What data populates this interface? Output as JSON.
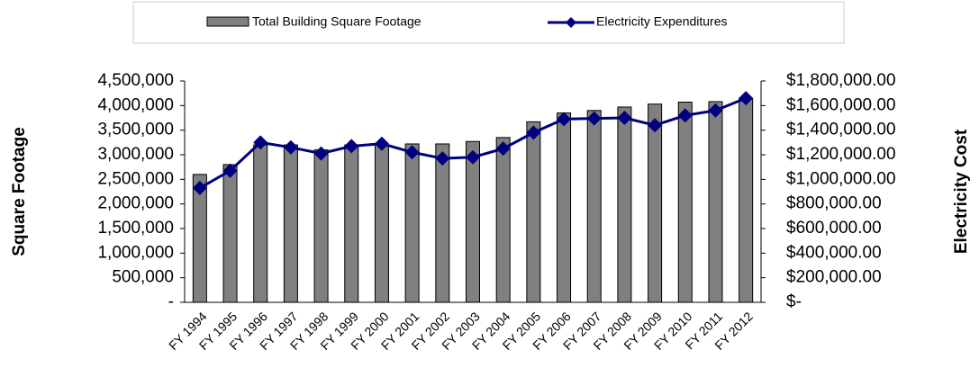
{
  "chart_data": {
    "type": "bar_line",
    "categories": [
      "FY 1994",
      "FY 1995",
      "FY 1996",
      "FY 1997",
      "FY 1998",
      "FY 1999",
      "FY 2000",
      "FY 2001",
      "FY 2002",
      "FY 2003",
      "FY 2004",
      "FY 2005",
      "FY 2006",
      "FY 2007",
      "FY 2008",
      "FY 2009",
      "FY 2010",
      "FY 2011",
      "FY 2012"
    ],
    "series": [
      {
        "name": "Total Building Square Footage",
        "color": "#808080",
        "values": [
          2600000,
          2800000,
          3200000,
          3200000,
          3100000,
          3200000,
          3200000,
          3220000,
          3220000,
          3270000,
          3350000,
          3670000,
          3850000,
          3900000,
          3970000,
          4030000,
          4070000,
          4080000,
          4150000
        ]
      },
      {
        "name": "Electricity Expenditures",
        "color": "#000080",
        "axis": "y2",
        "values": [
          930000,
          1070000,
          1300000,
          1260000,
          1210000,
          1270000,
          1290000,
          1220000,
          1170000,
          1180000,
          1250000,
          1380000,
          1490000,
          1495000,
          1500000,
          1440000,
          1520000,
          1560000,
          1660000
        ]
      }
    ],
    "ylabel": "Square Footage",
    "y2label": "Electricity Cost",
    "ylim": [
      0,
      4500000
    ],
    "yticks": [
      {
        "value": 0,
        "label": "-"
      },
      {
        "value": 500000,
        "label": "500,000"
      },
      {
        "value": 1000000,
        "label": "1,000,000"
      },
      {
        "value": 1500000,
        "label": "1,500,000"
      },
      {
        "value": 2000000,
        "label": "2,000,000"
      },
      {
        "value": 2500000,
        "label": "2,500,000"
      },
      {
        "value": 3000000,
        "label": "3,000,000"
      },
      {
        "value": 3500000,
        "label": "3,500,000"
      },
      {
        "value": 4000000,
        "label": "4,000,000"
      },
      {
        "value": 4500000,
        "label": "4,500,000"
      }
    ],
    "y2lim": [
      0,
      1800000
    ],
    "y2ticks": [
      {
        "value": 0,
        "label": "$-"
      },
      {
        "value": 200000,
        "label": "$200,000.00"
      },
      {
        "value": 400000,
        "label": "$400,000.00"
      },
      {
        "value": 600000,
        "label": "$600,000.00"
      },
      {
        "value": 800000,
        "label": "$800,000.00"
      },
      {
        "value": 1000000,
        "label": "$1,000,000.00"
      },
      {
        "value": 1200000,
        "label": "$1,200,000.00"
      },
      {
        "value": 1400000,
        "label": "$1,400,000.00"
      },
      {
        "value": 1600000,
        "label": "$1,600,000.00"
      },
      {
        "value": 1800000,
        "label": "$1,800,000.00"
      }
    ],
    "legend": "top"
  }
}
